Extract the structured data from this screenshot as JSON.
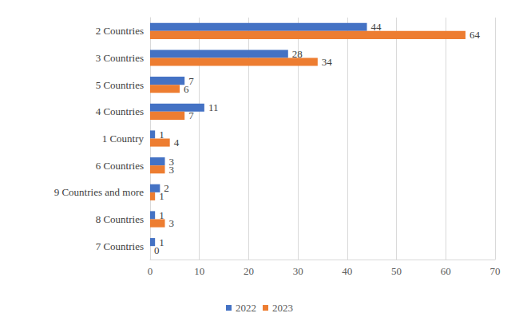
{
  "chart_data": {
    "type": "bar",
    "orientation": "horizontal",
    "categories": [
      "2 Countries",
      "3 Countries",
      "5 Countries",
      "4 Countries",
      "1 Country",
      "6 Countries",
      "9 Countries and more",
      "8 Countries",
      "7 Countries"
    ],
    "series": [
      {
        "name": "2022",
        "color": "#4472c4",
        "values": [
          44,
          28,
          7,
          11,
          1,
          3,
          2,
          1,
          1
        ]
      },
      {
        "name": "2023",
        "color": "#ed7d31",
        "values": [
          64,
          34,
          6,
          7,
          4,
          3,
          1,
          3,
          0
        ]
      }
    ],
    "xlim": [
      0,
      70
    ],
    "xticks": [
      0,
      10,
      20,
      30,
      40,
      50,
      60,
      70
    ],
    "grid": true,
    "data_labels": true,
    "legend": "bottom"
  }
}
